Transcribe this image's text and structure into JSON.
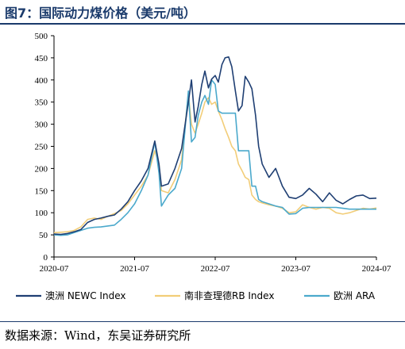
{
  "header": {
    "title": "图7：国际动力煤价格（美元/吨）"
  },
  "footer": {
    "source": "数据来源：Wind，东吴证券研究所"
  },
  "chart_data": {
    "type": "line",
    "title": "图7：国际动力煤价格（美元/吨）",
    "xlabel": "",
    "ylabel": "",
    "x_ticks": [
      "2020-07",
      "2021-07",
      "2022-07",
      "2023-07",
      "2024-07"
    ],
    "xlim": [
      "2020-07",
      "2024-07"
    ],
    "ylim": [
      0,
      500
    ],
    "y_ticks": [
      0,
      50,
      100,
      150,
      200,
      250,
      300,
      350,
      400,
      450,
      500
    ],
    "grid": false,
    "legend_position": "bottom",
    "series": [
      {
        "name": "澳洲 NEWC Index",
        "color": "#1f3f73",
        "points": [
          [
            "2020-07",
            52
          ],
          [
            "2020-08",
            51
          ],
          [
            "2020-09",
            53
          ],
          [
            "2020-10",
            57
          ],
          [
            "2020-11",
            62
          ],
          [
            "2020-12",
            78
          ],
          [
            "2021-01",
            85
          ],
          [
            "2021-02",
            88
          ],
          [
            "2021-03",
            92
          ],
          [
            "2021-04",
            95
          ],
          [
            "2021-05",
            108
          ],
          [
            "2021-06",
            125
          ],
          [
            "2021-07",
            150
          ],
          [
            "2021-08",
            172
          ],
          [
            "2021-09",
            200
          ],
          [
            "2021-10",
            262
          ],
          [
            "2021-10-20",
            210
          ],
          [
            "2021-11",
            160
          ],
          [
            "2021-12",
            165
          ],
          [
            "2022-01",
            200
          ],
          [
            "2022-02",
            245
          ],
          [
            "2022-03",
            350
          ],
          [
            "2022-03-15",
            400
          ],
          [
            "2022-04",
            305
          ],
          [
            "2022-04-15",
            340
          ],
          [
            "2022-05",
            390
          ],
          [
            "2022-05-15",
            420
          ],
          [
            "2022-06",
            382
          ],
          [
            "2022-06-15",
            402
          ],
          [
            "2022-07",
            410
          ],
          [
            "2022-07-15",
            395
          ],
          [
            "2022-08",
            435
          ],
          [
            "2022-08-15",
            450
          ],
          [
            "2022-09",
            452
          ],
          [
            "2022-09-15",
            430
          ],
          [
            "2022-10",
            375
          ],
          [
            "2022-10-15",
            330
          ],
          [
            "2022-11",
            342
          ],
          [
            "2022-11-15",
            408
          ],
          [
            "2022-12",
            395
          ],
          [
            "2022-12-15",
            380
          ],
          [
            "2023-01",
            320
          ],
          [
            "2023-01-15",
            250
          ],
          [
            "2023-02",
            210
          ],
          [
            "2023-03",
            180
          ],
          [
            "2023-04",
            200
          ],
          [
            "2023-05",
            160
          ],
          [
            "2023-06",
            135
          ],
          [
            "2023-07",
            132
          ],
          [
            "2023-08",
            140
          ],
          [
            "2023-09",
            155
          ],
          [
            "2023-10",
            142
          ],
          [
            "2023-11",
            125
          ],
          [
            "2023-12",
            145
          ],
          [
            "2024-01",
            128
          ],
          [
            "2024-02",
            120
          ],
          [
            "2024-03",
            130
          ],
          [
            "2024-04",
            138
          ],
          [
            "2024-05",
            140
          ],
          [
            "2024-06",
            132
          ],
          [
            "2024-07",
            133
          ]
        ]
      },
      {
        "name": "南非查理德RB Index",
        "color": "#f2cd78",
        "points": [
          [
            "2020-07",
            55
          ],
          [
            "2020-08",
            56
          ],
          [
            "2020-09",
            57
          ],
          [
            "2020-10",
            60
          ],
          [
            "2020-11",
            68
          ],
          [
            "2020-12",
            85
          ],
          [
            "2021-01",
            88
          ],
          [
            "2021-02",
            85
          ],
          [
            "2021-03",
            92
          ],
          [
            "2021-04",
            98
          ],
          [
            "2021-05",
            105
          ],
          [
            "2021-06",
            120
          ],
          [
            "2021-07",
            140
          ],
          [
            "2021-08",
            160
          ],
          [
            "2021-09",
            185
          ],
          [
            "2021-10",
            240
          ],
          [
            "2021-10-20",
            210
          ],
          [
            "2021-11",
            150
          ],
          [
            "2021-12",
            145
          ],
          [
            "2022-01",
            175
          ],
          [
            "2022-02",
            220
          ],
          [
            "2022-03",
            370
          ],
          [
            "2022-03-15",
            300
          ],
          [
            "2022-04",
            280
          ],
          [
            "2022-04-15",
            300
          ],
          [
            "2022-05",
            325
          ],
          [
            "2022-05-15",
            350
          ],
          [
            "2022-06",
            360
          ],
          [
            "2022-06-15",
            345
          ],
          [
            "2022-07",
            350
          ],
          [
            "2022-07-15",
            330
          ],
          [
            "2022-08",
            310
          ],
          [
            "2022-08-15",
            290
          ],
          [
            "2022-09",
            270
          ],
          [
            "2022-09-15",
            250
          ],
          [
            "2022-10",
            240
          ],
          [
            "2022-10-15",
            210
          ],
          [
            "2022-11",
            195
          ],
          [
            "2022-11-15",
            180
          ],
          [
            "2022-12",
            175
          ],
          [
            "2022-12-15",
            140
          ],
          [
            "2023-01",
            130
          ],
          [
            "2023-01-15",
            125
          ],
          [
            "2023-02",
            122
          ],
          [
            "2023-03",
            118
          ],
          [
            "2023-04",
            115
          ],
          [
            "2023-05",
            110
          ],
          [
            "2023-06",
            100
          ],
          [
            "2023-07",
            102
          ],
          [
            "2023-08",
            118
          ],
          [
            "2023-09",
            112
          ],
          [
            "2023-10",
            108
          ],
          [
            "2023-11",
            112
          ],
          [
            "2023-12",
            110
          ],
          [
            "2024-01",
            100
          ],
          [
            "2024-02",
            97
          ],
          [
            "2024-03",
            100
          ],
          [
            "2024-04",
            105
          ],
          [
            "2024-05",
            110
          ],
          [
            "2024-06",
            108
          ],
          [
            "2024-07",
            111
          ]
        ]
      },
      {
        "name": "欧洲 ARA",
        "color": "#4ba9cc",
        "points": [
          [
            "2020-07",
            50
          ],
          [
            "2020-08",
            49
          ],
          [
            "2020-09",
            50
          ],
          [
            "2020-10",
            55
          ],
          [
            "2020-11",
            60
          ],
          [
            "2020-12",
            65
          ],
          [
            "2021-01",
            67
          ],
          [
            "2021-02",
            68
          ],
          [
            "2021-03",
            70
          ],
          [
            "2021-04",
            72
          ],
          [
            "2021-05",
            85
          ],
          [
            "2021-06",
            100
          ],
          [
            "2021-07",
            120
          ],
          [
            "2021-08",
            150
          ],
          [
            "2021-09",
            185
          ],
          [
            "2021-10",
            260
          ],
          [
            "2021-10-20",
            190
          ],
          [
            "2021-11",
            115
          ],
          [
            "2021-12",
            140
          ],
          [
            "2022-01",
            155
          ],
          [
            "2022-02",
            200
          ],
          [
            "2022-03",
            375
          ],
          [
            "2022-03-15",
            260
          ],
          [
            "2022-04",
            270
          ],
          [
            "2022-04-15",
            320
          ],
          [
            "2022-05",
            350
          ],
          [
            "2022-05-15",
            365
          ],
          [
            "2022-06",
            345
          ],
          [
            "2022-06-15",
            400
          ],
          [
            "2022-07",
            390
          ],
          [
            "2022-07-15",
            330
          ],
          [
            "2022-08",
            325
          ],
          [
            "2022-08-15",
            325
          ],
          [
            "2022-09",
            325
          ],
          [
            "2022-09-15",
            325
          ],
          [
            "2022-10",
            325
          ],
          [
            "2022-10-15",
            240
          ],
          [
            "2022-11",
            240
          ],
          [
            "2022-11-15",
            240
          ],
          [
            "2022-12",
            240
          ],
          [
            "2022-12-15",
            160
          ],
          [
            "2023-01",
            160
          ],
          [
            "2023-01-15",
            130
          ],
          [
            "2023-02",
            125
          ],
          [
            "2023-03",
            120
          ],
          [
            "2023-04",
            115
          ],
          [
            "2023-05",
            112
          ],
          [
            "2023-06",
            97
          ],
          [
            "2023-07",
            98
          ],
          [
            "2023-08",
            110
          ],
          [
            "2023-09",
            112
          ],
          [
            "2023-10",
            112
          ],
          [
            "2023-11",
            112
          ],
          [
            "2023-12",
            112
          ],
          [
            "2024-01",
            112
          ],
          [
            "2024-02",
            110
          ],
          [
            "2024-03",
            108
          ],
          [
            "2024-04",
            108
          ],
          [
            "2024-05",
            108
          ],
          [
            "2024-06",
            108
          ],
          [
            "2024-07",
            108
          ]
        ]
      }
    ]
  }
}
